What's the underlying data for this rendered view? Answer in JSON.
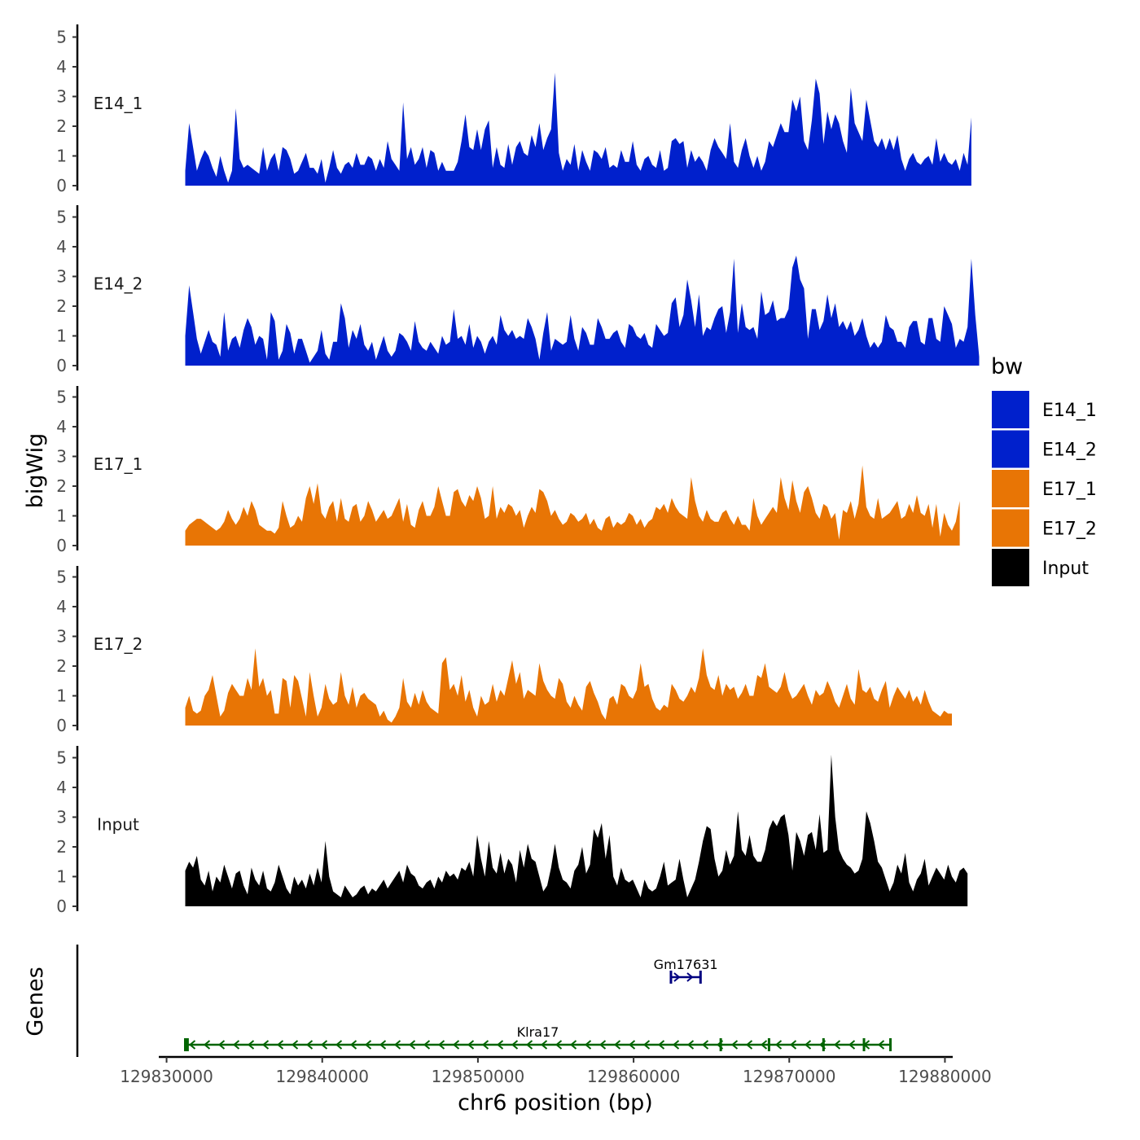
{
  "chart_data": {
    "type": "area",
    "ylabel": "bigWig",
    "genes_label": "Genes",
    "xlabel": "chr6 position (bp)",
    "xlim": [
      129829500,
      129880500
    ],
    "data_xrange": [
      129831200,
      129878500
    ],
    "x_ticks": [
      129830000,
      129840000,
      129850000,
      129860000,
      129870000,
      129880000
    ],
    "x_tick_labels": [
      "129830000",
      "129840000",
      "129850000",
      "129860000",
      "129870000",
      "129880000"
    ],
    "ylim": [
      0,
      5.2
    ],
    "y_ticks": [
      0,
      1,
      2,
      3,
      4,
      5
    ],
    "y_tick_labels": [
      "0",
      "1",
      "2",
      "3",
      "4",
      "5"
    ],
    "legend": {
      "title": "bw",
      "entries": [
        {
          "label": "E14_1",
          "color": "#0020cc"
        },
        {
          "label": "E14_2",
          "color": "#0020cc"
        },
        {
          "label": "E17_1",
          "color": "#e87505"
        },
        {
          "label": "E17_2",
          "color": "#e87505"
        },
        {
          "label": "Input",
          "color": "#000000"
        }
      ]
    },
    "series": [
      {
        "name": "E14_1",
        "color": "#0020cc",
        "step": 250,
        "values": [
          0.5,
          2.1,
          1.3,
          0.5,
          0.9,
          1.2,
          1.0,
          0.6,
          0.3,
          1.0,
          0.5,
          0.1,
          0.5,
          2.6,
          0.9,
          0.6,
          0.7,
          0.6,
          0.5,
          0.4,
          1.3,
          0.5,
          0.9,
          1.1,
          0.5,
          1.3,
          1.2,
          0.9,
          0.4,
          0.5,
          0.8,
          1.1,
          0.6,
          0.6,
          0.4,
          0.9,
          0.1,
          0.6,
          1.2,
          0.6,
          0.4,
          0.7,
          0.8,
          0.6,
          1.1,
          0.7,
          0.7,
          1.0,
          0.9,
          0.5,
          0.9,
          0.6,
          1.5,
          0.9,
          0.7,
          0.5,
          2.8,
          0.9,
          1.3,
          0.7,
          0.9,
          1.3,
          0.6,
          1.2,
          1.1,
          0.5,
          0.8,
          0.5,
          0.5,
          0.5,
          0.8,
          1.5,
          2.4,
          1.3,
          1.2,
          1.9,
          1.2,
          1.9,
          2.2,
          0.6,
          1.3,
          0.7,
          0.6,
          1.4,
          0.7,
          1.3,
          1.5,
          1.1,
          1.0,
          1.7,
          1.3,
          2.1,
          1.2,
          1.6,
          1.9,
          3.8,
          1.1,
          0.5,
          0.9,
          0.7,
          1.4,
          0.5,
          1.2,
          0.8,
          0.5,
          1.2,
          1.1,
          0.9,
          1.3,
          0.6,
          0.7,
          0.6,
          1.2,
          0.8,
          0.8,
          1.5,
          0.7,
          0.5,
          0.9,
          1.0,
          0.7,
          0.6,
          1.2,
          0.5,
          0.6,
          1.5,
          1.6,
          1.4,
          1.5,
          0.6,
          1.2,
          0.8,
          1.0,
          0.8,
          0.5,
          1.2,
          1.6,
          1.3,
          1.1,
          0.9,
          2.1,
          0.8,
          0.6,
          1.2,
          1.6,
          1.0,
          0.6,
          1.0,
          0.5,
          0.8,
          1.5,
          1.3,
          1.7,
          2.1,
          1.8,
          1.8,
          2.9,
          2.5,
          3.0,
          1.5,
          1.2,
          2.2,
          3.6,
          3.1,
          1.4,
          2.5,
          1.9,
          2.4,
          2.1,
          1.5,
          1.1,
          3.3,
          2.1,
          1.8,
          1.5,
          2.9,
          2.2,
          1.5,
          1.3,
          1.6,
          1.2,
          1.6,
          1.2,
          1.7,
          0.9,
          0.5,
          0.9,
          1.1,
          0.8,
          0.7,
          0.9,
          1.0,
          0.7,
          1.6,
          0.8,
          1.1,
          0.8,
          0.7,
          0.9,
          0.5,
          1.1,
          0.7,
          2.3
        ]
      },
      {
        "name": "E14_2",
        "color": "#0020cc",
        "step": 250,
        "values": [
          1.0,
          2.7,
          1.8,
          0.9,
          0.4,
          0.8,
          1.2,
          0.8,
          0.7,
          0.3,
          1.8,
          0.5,
          0.9,
          1.0,
          0.6,
          1.2,
          1.6,
          1.3,
          0.7,
          1.0,
          0.9,
          0.2,
          1.8,
          1.5,
          0.2,
          0.5,
          1.4,
          1.1,
          0.4,
          0.9,
          0.9,
          0.5,
          0.1,
          0.3,
          0.5,
          1.2,
          0.4,
          0.2,
          0.8,
          0.8,
          2.1,
          1.6,
          0.6,
          1.2,
          0.9,
          1.4,
          0.7,
          0.5,
          0.8,
          0.2,
          0.6,
          1.0,
          0.5,
          0.3,
          0.5,
          1.1,
          1.0,
          0.8,
          0.5,
          1.5,
          0.8,
          0.6,
          0.5,
          0.8,
          0.6,
          0.4,
          1.0,
          0.7,
          0.8,
          1.9,
          0.9,
          1.0,
          0.7,
          1.4,
          0.6,
          1.0,
          0.8,
          0.4,
          0.8,
          1.0,
          0.7,
          1.7,
          1.2,
          1.0,
          1.2,
          0.9,
          1.0,
          0.9,
          1.6,
          1.3,
          0.9,
          0.2,
          1.1,
          1.8,
          0.5,
          0.9,
          0.8,
          0.7,
          0.8,
          1.7,
          0.9,
          0.5,
          1.3,
          1.1,
          0.7,
          0.7,
          1.6,
          1.3,
          0.9,
          0.9,
          1.1,
          1.2,
          0.8,
          0.6,
          1.4,
          1.3,
          1.0,
          0.9,
          1.1,
          0.7,
          0.6,
          1.4,
          1.2,
          1.0,
          1.1,
          2.1,
          2.3,
          1.3,
          1.7,
          2.9,
          2.2,
          1.3,
          2.4,
          1.0,
          1.3,
          1.2,
          1.6,
          1.9,
          2.0,
          1.1,
          1.8,
          3.6,
          1.1,
          2.1,
          1.3,
          1.2,
          1.3,
          0.9,
          2.5,
          1.7,
          1.8,
          2.2,
          1.5,
          1.6,
          1.6,
          1.9,
          3.3,
          3.7,
          2.9,
          2.6,
          0.9,
          1.9,
          1.9,
          1.2,
          1.5,
          2.4,
          1.6,
          2.1,
          1.3,
          1.5,
          1.2,
          1.5,
          1.0,
          1.2,
          1.6,
          1.0,
          0.6,
          0.8,
          0.6,
          0.8,
          1.7,
          1.3,
          1.2,
          0.8,
          0.8,
          0.6,
          1.3,
          1.5,
          1.5,
          0.8,
          0.7,
          1.6,
          1.6,
          0.9,
          0.8,
          2.0,
          1.7,
          1.4,
          0.6,
          0.9,
          0.8,
          1.3,
          3.6,
          1.7,
          0.3
        ]
      },
      {
        "name": "E17_1",
        "color": "#e87505",
        "step": 250,
        "values": [
          0.5,
          0.7,
          0.8,
          0.9,
          0.9,
          0.8,
          0.7,
          0.6,
          0.5,
          0.6,
          0.8,
          1.2,
          0.9,
          0.7,
          0.9,
          1.3,
          1.0,
          1.5,
          1.2,
          0.7,
          0.6,
          0.5,
          0.5,
          0.4,
          0.6,
          1.5,
          1.0,
          0.6,
          0.7,
          1.0,
          0.8,
          1.6,
          2.0,
          1.4,
          2.1,
          1.1,
          0.9,
          1.3,
          1.5,
          0.8,
          1.6,
          0.9,
          0.8,
          1.3,
          1.4,
          0.8,
          1.0,
          1.5,
          1.2,
          0.8,
          1.0,
          1.2,
          0.9,
          1.0,
          1.3,
          1.6,
          0.8,
          1.4,
          0.7,
          0.6,
          1.2,
          1.5,
          1.0,
          1.0,
          1.3,
          2.0,
          1.5,
          1.0,
          1.0,
          1.8,
          1.9,
          1.5,
          1.3,
          1.7,
          1.5,
          2.0,
          1.6,
          0.9,
          1.0,
          2.0,
          0.9,
          1.3,
          1.1,
          1.4,
          1.3,
          1.0,
          1.2,
          0.6,
          1.0,
          1.3,
          1.1,
          1.9,
          1.8,
          1.5,
          1.0,
          1.2,
          0.9,
          0.7,
          0.8,
          1.1,
          1.0,
          0.8,
          0.9,
          1.1,
          0.7,
          0.9,
          0.6,
          0.5,
          0.9,
          1.0,
          0.6,
          0.8,
          0.7,
          0.8,
          1.1,
          1.0,
          0.7,
          0.9,
          0.6,
          0.8,
          0.9,
          1.3,
          1.2,
          1.4,
          1.1,
          1.6,
          1.3,
          1.1,
          1.0,
          0.9,
          2.3,
          1.5,
          1.0,
          0.8,
          1.2,
          0.9,
          0.8,
          0.8,
          1.1,
          1.2,
          0.9,
          0.7,
          1.0,
          0.7,
          0.7,
          0.5,
          1.6,
          1.0,
          0.7,
          0.9,
          1.1,
          1.3,
          1.1,
          2.3,
          1.6,
          1.2,
          2.2,
          1.5,
          1.1,
          1.8,
          2.0,
          1.6,
          1.1,
          0.9,
          1.4,
          1.3,
          0.9,
          1.1,
          0.2,
          1.2,
          1.1,
          1.5,
          0.9,
          1.4,
          2.7,
          1.3,
          1.0,
          0.9,
          1.6,
          0.9,
          1.0,
          1.1,
          1.3,
          1.5,
          0.9,
          1.0,
          1.4,
          1.1,
          1.7,
          1.1,
          1.0,
          1.4,
          0.6,
          1.4,
          0.3,
          1.1,
          0.7,
          0.5,
          0.8,
          1.5
        ]
      },
      {
        "name": "E17_2",
        "color": "#e87505",
        "step": 250,
        "values": [
          0.6,
          1.0,
          0.5,
          0.4,
          0.5,
          1.0,
          1.2,
          1.7,
          1.0,
          0.3,
          0.5,
          1.1,
          1.4,
          1.2,
          1.0,
          1.0,
          1.6,
          1.2,
          2.6,
          1.3,
          1.6,
          1.0,
          1.2,
          0.4,
          0.4,
          1.6,
          1.5,
          0.6,
          1.7,
          1.5,
          0.9,
          0.3,
          1.8,
          1.0,
          0.3,
          0.6,
          1.4,
          0.9,
          0.7,
          0.8,
          1.8,
          1.0,
          0.7,
          1.3,
          0.6,
          1.0,
          1.1,
          0.9,
          0.8,
          0.7,
          0.3,
          0.5,
          0.2,
          0.1,
          0.3,
          0.6,
          1.6,
          0.8,
          0.6,
          1.1,
          0.7,
          1.2,
          0.8,
          0.6,
          0.5,
          0.4,
          2.1,
          2.3,
          1.2,
          1.4,
          1.0,
          1.7,
          0.8,
          1.2,
          0.6,
          0.3,
          1.0,
          0.7,
          0.8,
          1.4,
          0.8,
          1.2,
          1.0,
          1.6,
          2.2,
          1.4,
          1.8,
          0.9,
          1.2,
          1.1,
          1.0,
          2.1,
          1.5,
          1.2,
          1.0,
          0.9,
          1.6,
          1.4,
          0.8,
          0.6,
          1.0,
          0.7,
          0.5,
          1.3,
          1.5,
          1.1,
          0.8,
          0.4,
          0.2,
          0.9,
          1.0,
          0.7,
          1.4,
          1.3,
          1.0,
          0.9,
          1.2,
          2.1,
          1.3,
          1.4,
          0.9,
          0.6,
          0.5,
          0.7,
          0.6,
          1.4,
          1.2,
          0.9,
          0.8,
          1.0,
          1.3,
          1.1,
          1.6,
          2.6,
          1.7,
          1.3,
          1.2,
          1.7,
          1.0,
          1.4,
          1.2,
          1.3,
          0.9,
          1.1,
          1.4,
          1.0,
          1.0,
          1.7,
          1.6,
          2.1,
          1.3,
          1.2,
          1.1,
          1.3,
          1.8,
          1.2,
          0.9,
          1.0,
          1.2,
          1.4,
          1.0,
          0.7,
          1.2,
          1.0,
          1.1,
          1.5,
          1.2,
          0.8,
          0.6,
          1.0,
          1.4,
          0.9,
          0.7,
          1.9,
          1.2,
          1.1,
          1.3,
          0.9,
          0.8,
          1.2,
          1.5,
          0.6,
          1.0,
          1.3,
          1.1,
          0.9,
          1.2,
          0.8,
          1.0,
          0.7,
          1.2,
          0.8,
          0.5,
          0.4,
          0.3,
          0.5,
          0.4,
          0.4
        ]
      },
      {
        "name": "Input",
        "color": "#000000",
        "step": 250,
        "values": [
          1.2,
          1.5,
          1.3,
          1.7,
          0.9,
          0.7,
          1.2,
          0.5,
          1.0,
          0.8,
          1.4,
          1.0,
          0.6,
          1.1,
          1.2,
          0.7,
          0.4,
          1.3,
          0.9,
          0.7,
          1.2,
          0.6,
          0.5,
          0.8,
          1.4,
          1.0,
          0.6,
          0.4,
          1.0,
          0.7,
          0.9,
          0.6,
          1.1,
          0.7,
          1.3,
          0.8,
          2.2,
          1.0,
          0.5,
          0.4,
          0.3,
          0.7,
          0.5,
          0.3,
          0.4,
          0.6,
          0.7,
          0.4,
          0.6,
          0.5,
          0.7,
          0.9,
          0.6,
          0.8,
          1.0,
          1.2,
          0.8,
          1.4,
          1.1,
          1.0,
          0.7,
          0.6,
          0.8,
          0.9,
          0.6,
          1.0,
          0.8,
          1.2,
          1.0,
          1.1,
          0.9,
          1.3,
          1.2,
          1.5,
          1.0,
          2.4,
          1.6,
          1.0,
          2.2,
          1.3,
          1.1,
          1.8,
          1.1,
          1.6,
          1.4,
          0.8,
          1.9,
          1.3,
          2.1,
          1.6,
          1.5,
          1.0,
          0.5,
          0.7,
          1.3,
          2.1,
          1.3,
          0.9,
          0.8,
          0.6,
          1.2,
          1.4,
          2.0,
          1.1,
          1.4,
          2.6,
          2.3,
          2.8,
          1.6,
          2.4,
          1.0,
          0.7,
          1.3,
          0.9,
          0.8,
          0.9,
          0.6,
          0.3,
          0.9,
          0.6,
          0.5,
          0.6,
          1.0,
          1.5,
          0.7,
          0.8,
          0.9,
          1.6,
          0.9,
          0.3,
          0.6,
          0.9,
          1.5,
          2.2,
          2.7,
          2.6,
          1.6,
          1.0,
          1.2,
          1.9,
          1.4,
          1.7,
          3.2,
          1.9,
          1.7,
          2.4,
          1.7,
          1.5,
          1.5,
          1.9,
          2.6,
          2.9,
          2.7,
          3.0,
          3.1,
          2.4,
          1.2,
          2.5,
          2.2,
          1.7,
          2.4,
          2.5,
          1.9,
          3.1,
          1.8,
          1.9,
          5.1,
          3.0,
          1.9,
          1.6,
          1.4,
          1.3,
          1.1,
          1.2,
          1.6,
          3.2,
          2.8,
          2.2,
          1.5,
          1.3,
          0.9,
          0.5,
          0.8,
          1.4,
          1.1,
          1.8,
          0.8,
          0.5,
          0.9,
          1.1,
          1.6,
          0.7,
          1.0,
          1.3,
          1.1,
          0.9,
          1.4,
          1.0,
          0.8,
          1.2,
          1.3,
          1.1
        ]
      }
    ],
    "genes": [
      {
        "name": "Gm17631",
        "strand": "+",
        "start": 129862400,
        "end": 129864300,
        "color": "#000080",
        "exons": [
          129862400,
          129864300
        ],
        "arrows": [
          129862400,
          129863300,
          129864300
        ]
      },
      {
        "name": "Klra17",
        "strand": "-",
        "start": 129831200,
        "end": 129876500,
        "color": "#006400",
        "exons": [
          129831200,
          129831350,
          129865600,
          129868700,
          129872200,
          129874800,
          129876500
        ]
      }
    ]
  }
}
